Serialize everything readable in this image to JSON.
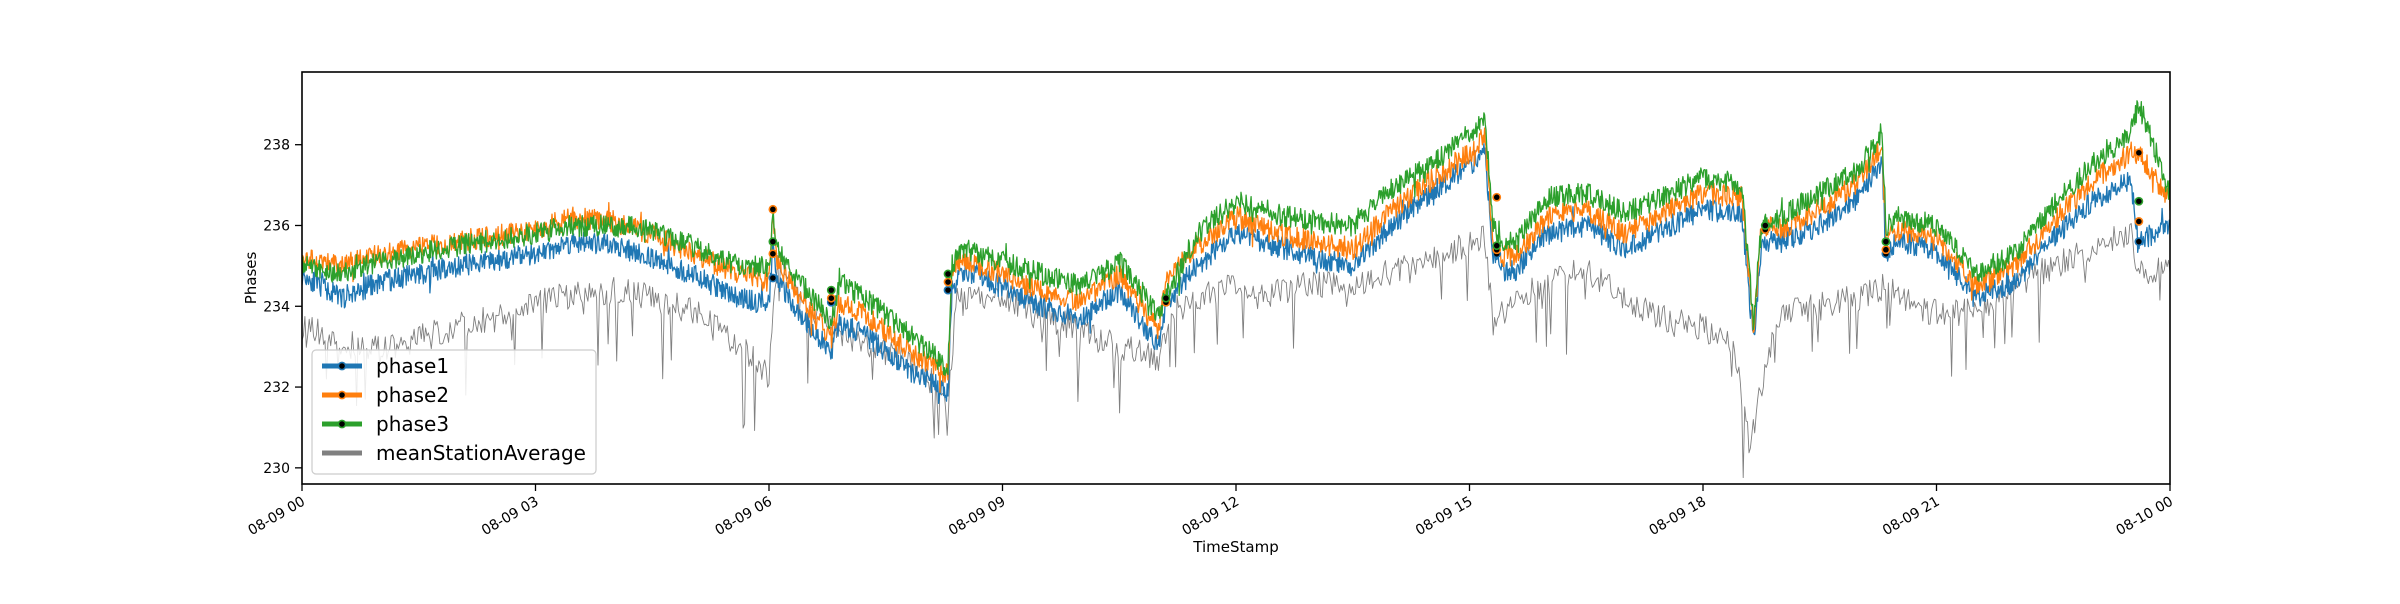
{
  "chart_data": {
    "type": "line",
    "xlabel": "TimeStamp",
    "ylabel": "Phases",
    "x_ticks": [
      "08-09 00",
      "08-09 03",
      "08-09 06",
      "08-09 09",
      "08-09 12",
      "08-09 15",
      "08-09 18",
      "08-09 21",
      "08-10 00"
    ],
    "x_range_hours": [
      0,
      24
    ],
    "y_ticks": [
      230,
      232,
      234,
      236,
      238
    ],
    "ylim": [
      229.6,
      239.8
    ],
    "grid": false,
    "legend_position": "lower-left",
    "series": [
      {
        "name": "phase1",
        "color": "#1f77b4",
        "hours": [
          0,
          0.5,
          1,
          2,
          3,
          3.5,
          4,
          4.5,
          5,
          5.5,
          6.0,
          6.05,
          6.1,
          6.4,
          6.8,
          6.9,
          7.3,
          7.8,
          8.3,
          8.35,
          8.5,
          9,
          9.5,
          10,
          10.5,
          11,
          11.1,
          11.5,
          12,
          12.5,
          13,
          13.5,
          14,
          14.5,
          15,
          15.2,
          15.3,
          15.4,
          15.6,
          16,
          16.5,
          17,
          17.5,
          18,
          18.5,
          18.65,
          18.75,
          19,
          19.5,
          20,
          20.3,
          20.35,
          20.5,
          21,
          21.5,
          22,
          22.5,
          23,
          23.5,
          23.6,
          24
        ],
        "values": [
          234.8,
          234.2,
          234.6,
          235.0,
          235.3,
          235.6,
          235.5,
          235.2,
          234.8,
          234.3,
          234.0,
          235.5,
          234.7,
          233.8,
          232.9,
          233.6,
          233.2,
          232.4,
          231.9,
          234.4,
          234.9,
          234.5,
          234.0,
          233.7,
          234.4,
          233.0,
          234.1,
          235.0,
          235.8,
          235.5,
          235.2,
          235.0,
          236.0,
          236.8,
          237.5,
          237.8,
          235.3,
          234.9,
          234.9,
          235.8,
          236.0,
          235.4,
          235.9,
          236.4,
          236.3,
          233.1,
          235.6,
          235.6,
          236.0,
          236.7,
          237.6,
          235.3,
          235.6,
          235.4,
          234.2,
          234.6,
          235.7,
          236.6,
          237.1,
          235.6,
          236.0
        ]
      },
      {
        "name": "phase2",
        "color": "#ff7f0e",
        "hours": [
          0,
          0.5,
          1,
          2,
          3,
          3.5,
          4,
          4.5,
          5,
          5.5,
          6.0,
          6.05,
          6.1,
          6.4,
          6.8,
          6.9,
          7.3,
          7.8,
          8.3,
          8.35,
          8.5,
          9,
          9.5,
          10,
          10.5,
          11,
          11.1,
          11.5,
          12,
          12.5,
          13,
          13.5,
          14,
          14.5,
          15,
          15.2,
          15.3,
          15.4,
          15.6,
          16,
          16.5,
          17,
          17.5,
          18,
          18.5,
          18.65,
          18.75,
          19,
          19.5,
          20,
          20.3,
          20.35,
          20.5,
          21,
          21.5,
          22,
          22.5,
          23,
          23.5,
          23.6,
          24
        ],
        "values": [
          235.2,
          235.0,
          235.3,
          235.6,
          235.9,
          236.2,
          236.1,
          235.8,
          235.3,
          234.9,
          234.6,
          236.3,
          235.1,
          234.2,
          233.2,
          234.1,
          233.7,
          232.9,
          232.3,
          234.9,
          235.2,
          234.8,
          234.4,
          234.1,
          234.8,
          233.4,
          234.6,
          235.5,
          236.2,
          235.8,
          235.6,
          235.4,
          236.4,
          237.1,
          237.8,
          238.2,
          235.6,
          235.2,
          235.3,
          236.2,
          236.4,
          235.8,
          236.3,
          236.8,
          236.7,
          233.4,
          236.0,
          235.9,
          236.4,
          237.1,
          238.0,
          235.6,
          235.9,
          235.7,
          234.5,
          235.0,
          236.1,
          237.1,
          237.8,
          237.8,
          236.6
        ]
      },
      {
        "name": "phase3",
        "color": "#2ca02c",
        "hours": [
          0,
          0.5,
          1,
          2,
          3,
          3.5,
          4,
          4.5,
          5,
          5.5,
          6.0,
          6.05,
          6.1,
          6.4,
          6.8,
          6.9,
          7.3,
          7.8,
          8.3,
          8.35,
          8.5,
          9,
          9.5,
          10,
          10.5,
          11,
          11.1,
          11.5,
          12,
          12.5,
          13,
          13.5,
          14,
          14.5,
          15,
          15.2,
          15.3,
          15.4,
          15.6,
          16,
          16.5,
          17,
          17.5,
          18,
          18.5,
          18.65,
          18.75,
          19,
          19.5,
          20,
          20.3,
          20.35,
          20.5,
          21,
          21.5,
          22,
          22.5,
          23,
          23.5,
          23.6,
          24
        ],
        "values": [
          235.0,
          234.8,
          235.1,
          235.5,
          235.8,
          236.0,
          236.0,
          235.9,
          235.5,
          235.1,
          234.9,
          236.2,
          235.4,
          234.6,
          233.6,
          234.6,
          234.1,
          233.3,
          232.5,
          235.0,
          235.4,
          235.1,
          234.8,
          234.5,
          235.1,
          233.8,
          234.2,
          235.8,
          236.6,
          236.3,
          236.1,
          236.0,
          236.9,
          237.5,
          238.3,
          238.6,
          236.0,
          235.5,
          235.6,
          236.7,
          236.8,
          236.3,
          236.7,
          237.2,
          237.0,
          233.6,
          236.0,
          236.2,
          236.8,
          237.4,
          238.3,
          236.0,
          236.2,
          236.0,
          234.8,
          235.3,
          236.5,
          237.5,
          238.3,
          239.0,
          236.8
        ]
      },
      {
        "name": "meanStationAverage",
        "color": "#808080",
        "hours": [
          0,
          0.5,
          1,
          1.5,
          2,
          2.5,
          3,
          3.5,
          4,
          4.5,
          5,
          5.5,
          6.0,
          6.1,
          6.5,
          7.0,
          7.5,
          8.0,
          8.3,
          8.4,
          9,
          9.5,
          10,
          10.5,
          11,
          11.2,
          11.5,
          12,
          12.5,
          13,
          13.5,
          14,
          14.5,
          15,
          15.2,
          15.3,
          15.6,
          16,
          16.5,
          17,
          17.5,
          18,
          18.4,
          18.6,
          18.8,
          19.0,
          19.5,
          20,
          20.3,
          20.5,
          21,
          21.5,
          22,
          22.5,
          23,
          23.5,
          23.6,
          24
        ],
        "values": [
          233.5,
          233.1,
          232.9,
          233.2,
          233.5,
          233.7,
          234.1,
          234.3,
          234.4,
          234.2,
          233.9,
          233.2,
          232.3,
          235.1,
          234.0,
          233.2,
          232.9,
          232.4,
          231.5,
          234.1,
          234.2,
          233.8,
          233.4,
          233.0,
          232.7,
          233.9,
          234.2,
          234.5,
          234.3,
          234.6,
          234.4,
          234.9,
          235.2,
          235.5,
          235.7,
          233.6,
          234.1,
          234.6,
          234.9,
          234.2,
          233.7,
          233.5,
          233.0,
          230.6,
          232.5,
          233.8,
          234.0,
          234.2,
          234.5,
          234.3,
          233.8,
          233.9,
          234.5,
          235.0,
          235.4,
          235.9,
          234.8,
          234.9
        ]
      }
    ],
    "markers": [
      {
        "hour": 6.05,
        "values": [
          234.7,
          235.3,
          235.6
        ],
        "phase2_peak": 236.4
      },
      {
        "hour": 6.8,
        "values": [
          234.1,
          234.2,
          234.4
        ]
      },
      {
        "hour": 8.3,
        "values": [
          234.4,
          234.6,
          234.8
        ]
      },
      {
        "hour": 11.1,
        "values": [
          234.1,
          234.1,
          234.2
        ]
      },
      {
        "hour": 15.35,
        "values": [
          235.3,
          235.4,
          235.5
        ],
        "phase2_peak": 236.7
      },
      {
        "hour": 18.8,
        "values": [
          235.9,
          235.9,
          236.0
        ]
      },
      {
        "hour": 20.35,
        "values": [
          235.3,
          235.4,
          235.6
        ]
      },
      {
        "hour": 23.6,
        "values": [
          235.6,
          236.1,
          236.6
        ],
        "phase2_peak": 237.8
      }
    ]
  }
}
